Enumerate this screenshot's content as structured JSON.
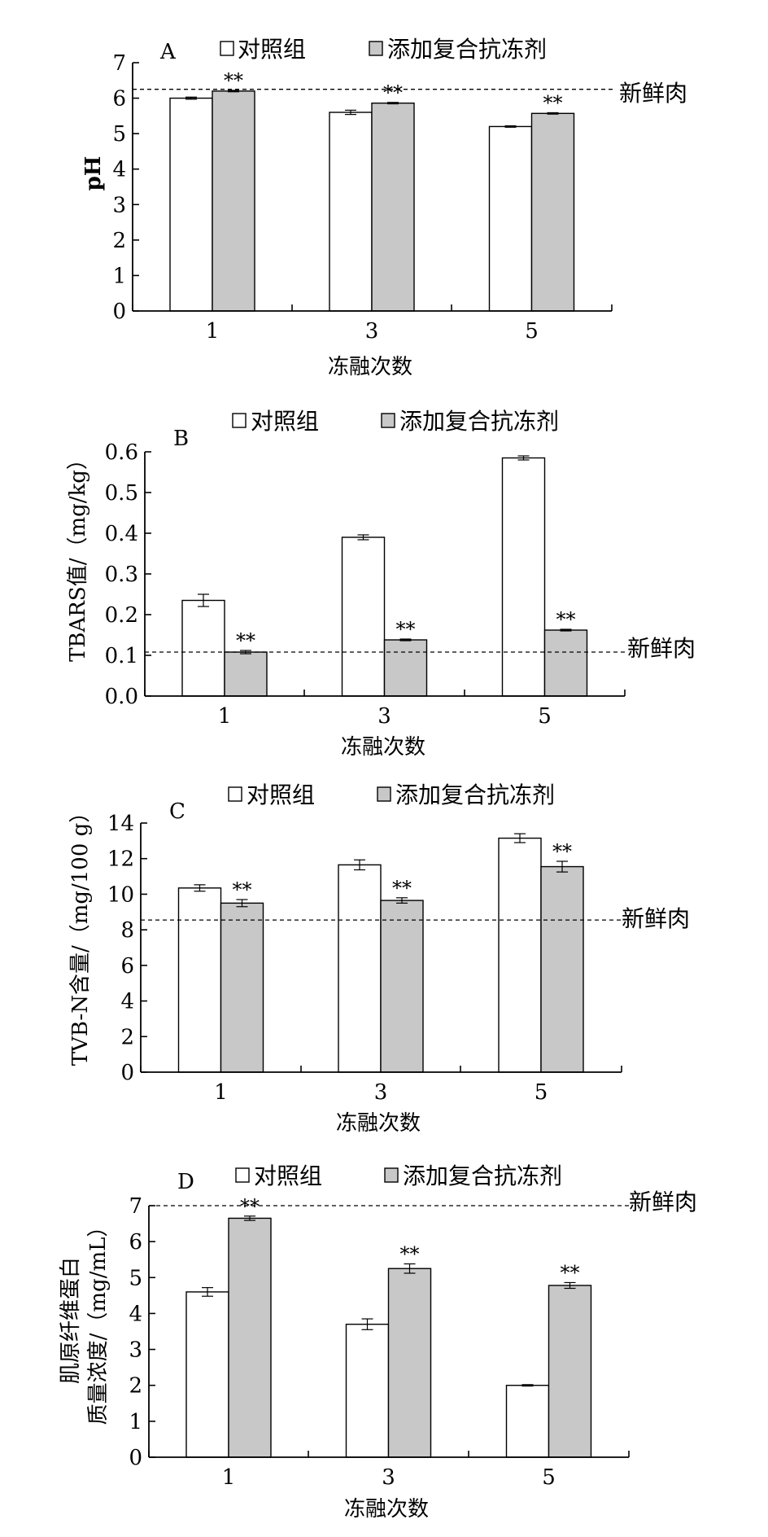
{
  "chart_data": [
    {
      "type": "bar",
      "panel": "A",
      "legend": [
        "对照组",
        "添加复合抗冻剂"
      ],
      "categories": [
        "1",
        "3",
        "5"
      ],
      "xlabel": "冻融次数",
      "ylabel": "pH",
      "ylim": [
        0,
        7
      ],
      "yticks": [
        0,
        1,
        2,
        3,
        4,
        5,
        6,
        7
      ],
      "ytick_labels": [
        "0",
        "1",
        "2",
        "3",
        "4",
        "5",
        "6",
        "7"
      ],
      "series": [
        {
          "name": "对照组",
          "color": "#ffffff",
          "values": [
            6.0,
            5.6,
            5.2
          ],
          "errors": [
            0.03,
            0.06,
            0.02
          ]
        },
        {
          "name": "添加复合抗冻剂",
          "color": "#c8c8c8",
          "values": [
            6.2,
            5.86,
            5.57
          ],
          "errors": [
            0.02,
            0.02,
            0.02
          ]
        }
      ],
      "significance": [
        "**",
        "**",
        "**"
      ],
      "reference": {
        "value": 6.25,
        "label": "新鲜肉"
      }
    },
    {
      "type": "bar",
      "panel": "B",
      "legend": [
        "对照组",
        "添加复合抗冻剂"
      ],
      "categories": [
        "1",
        "3",
        "5"
      ],
      "xlabel": "冻融次数",
      "ylabel": "TBARS值/（mg/kg）",
      "ylim": [
        0,
        0.6
      ],
      "yticks": [
        0,
        0.1,
        0.2,
        0.3,
        0.4,
        0.5,
        0.6
      ],
      "ytick_labels": [
        "0.0",
        "0.1",
        "0.2",
        "0.3",
        "0.4",
        "0.5",
        "0.6"
      ],
      "series": [
        {
          "name": "对照组",
          "color": "#ffffff",
          "values": [
            0.235,
            0.39,
            0.585
          ],
          "errors": [
            0.015,
            0.006,
            0.005
          ]
        },
        {
          "name": "添加复合抗冻剂",
          "color": "#c8c8c8",
          "values": [
            0.108,
            0.138,
            0.162
          ],
          "errors": [
            0.004,
            0.002,
            0.002
          ]
        }
      ],
      "significance": [
        "**",
        "**",
        "**"
      ],
      "reference": {
        "value": 0.108,
        "label": "新鲜肉"
      }
    },
    {
      "type": "bar",
      "panel": "C",
      "legend": [
        "对照组",
        "添加复合抗冻剂"
      ],
      "categories": [
        "1",
        "3",
        "5"
      ],
      "xlabel": "冻融次数",
      "ylabel": "TVB-N含量/（mg/100 g）",
      "ylim": [
        0,
        14
      ],
      "yticks": [
        0,
        2,
        4,
        6,
        8,
        10,
        12,
        14
      ],
      "ytick_labels": [
        "0",
        "2",
        "4",
        "6",
        "8",
        "10",
        "12",
        "14"
      ],
      "series": [
        {
          "name": "对照组",
          "color": "#ffffff",
          "values": [
            10.35,
            11.65,
            13.15
          ],
          "errors": [
            0.18,
            0.28,
            0.25
          ]
        },
        {
          "name": "添加复合抗冻剂",
          "color": "#c8c8c8",
          "values": [
            9.5,
            9.65,
            11.55
          ],
          "errors": [
            0.2,
            0.15,
            0.3
          ]
        }
      ],
      "significance": [
        "**",
        "**",
        "**"
      ],
      "reference": {
        "value": 8.55,
        "label": "新鲜肉"
      }
    },
    {
      "type": "bar",
      "panel": "D",
      "legend": [
        "对照组",
        "添加复合抗冻剂"
      ],
      "categories": [
        "1",
        "3",
        "5"
      ],
      "xlabel": "冻融次数",
      "ylabel_lines": [
        "肌原纤维蛋白",
        "质量浓度/（mg/mL）"
      ],
      "ylim": [
        0,
        7
      ],
      "yticks": [
        0,
        1,
        2,
        3,
        4,
        5,
        6,
        7
      ],
      "ytick_labels": [
        "0",
        "1",
        "2",
        "3",
        "4",
        "5",
        "6",
        "7"
      ],
      "series": [
        {
          "name": "对照组",
          "color": "#ffffff",
          "values": [
            4.6,
            3.7,
            2.0
          ],
          "errors": [
            0.12,
            0.15,
            0.02
          ]
        },
        {
          "name": "添加复合抗冻剂",
          "color": "#c8c8c8",
          "values": [
            6.65,
            5.25,
            4.78
          ],
          "errors": [
            0.06,
            0.13,
            0.08
          ]
        }
      ],
      "significance": [
        "**",
        "**",
        "**"
      ],
      "reference": {
        "value": 7.0,
        "label": "新鲜肉"
      }
    }
  ]
}
